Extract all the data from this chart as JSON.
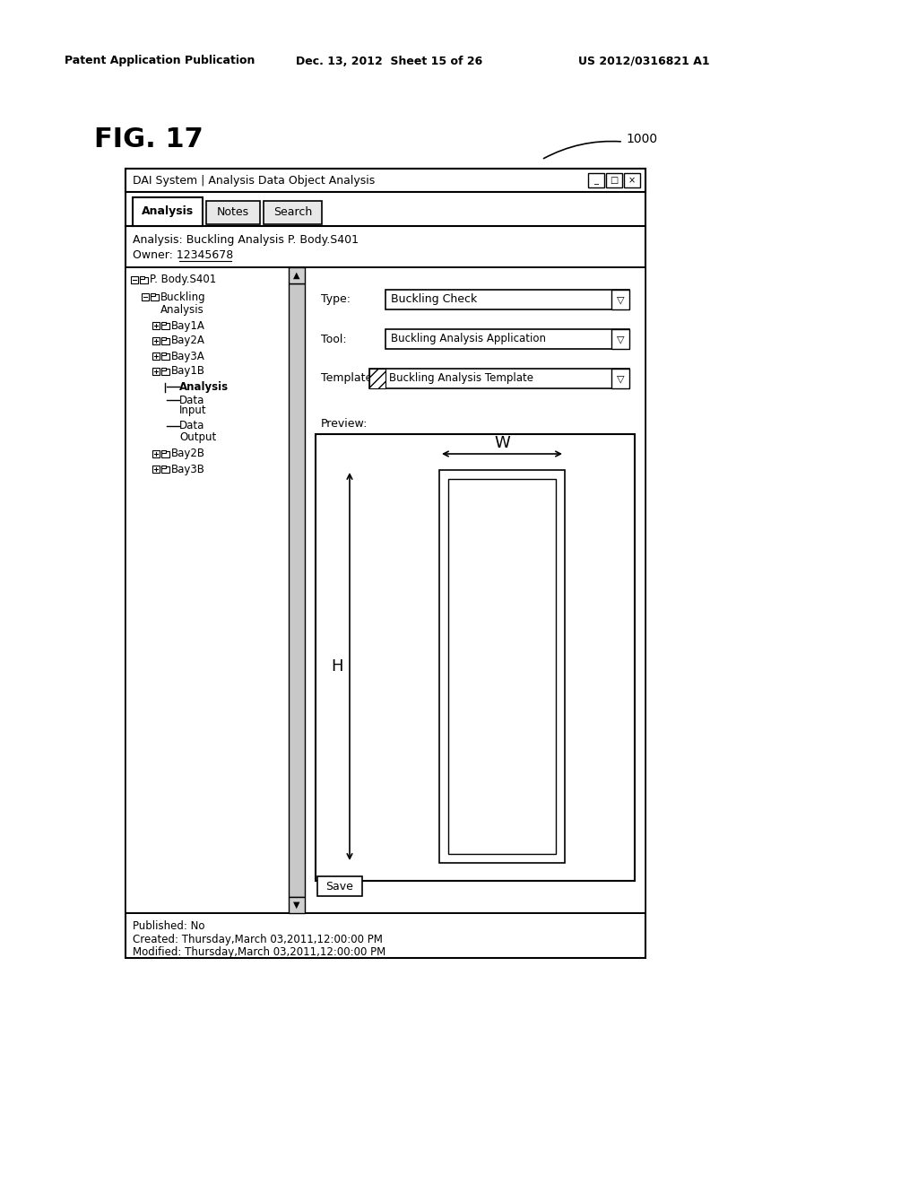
{
  "header_left": "Patent Application Publication",
  "header_center": "Dec. 13, 2012  Sheet 15 of 26",
  "header_right": "US 2012/0316821 A1",
  "fig_label": "FIG. 17",
  "callout_label": "1000",
  "window_title": "DAI System | Analysis Data Object Analysis",
  "tab1": "Analysis",
  "tab2": "Notes",
  "tab3": "Search",
  "info_line1": "Analysis: Buckling Analysis P. Body.S401",
  "info_line2": "Owner: 12345678",
  "type_label": "Type:",
  "type_value": "Buckling Check",
  "tool_label": "Tool:",
  "tool_value": "Buckling Analysis Application",
  "template_label": "Template:",
  "template_value": "Buckling Analysis Template",
  "preview_label": "Preview:",
  "dimension_w": "W",
  "dimension_h": "H",
  "save_button": "Save",
  "footer1": "Published: No",
  "footer2": "Created: Thursday,March 03,2011,12:00:00 PM",
  "footer3": "Modified: Thursday,March 03,2011,12:00:00 PM",
  "bg_color": "#ffffff",
  "border_color": "#000000"
}
